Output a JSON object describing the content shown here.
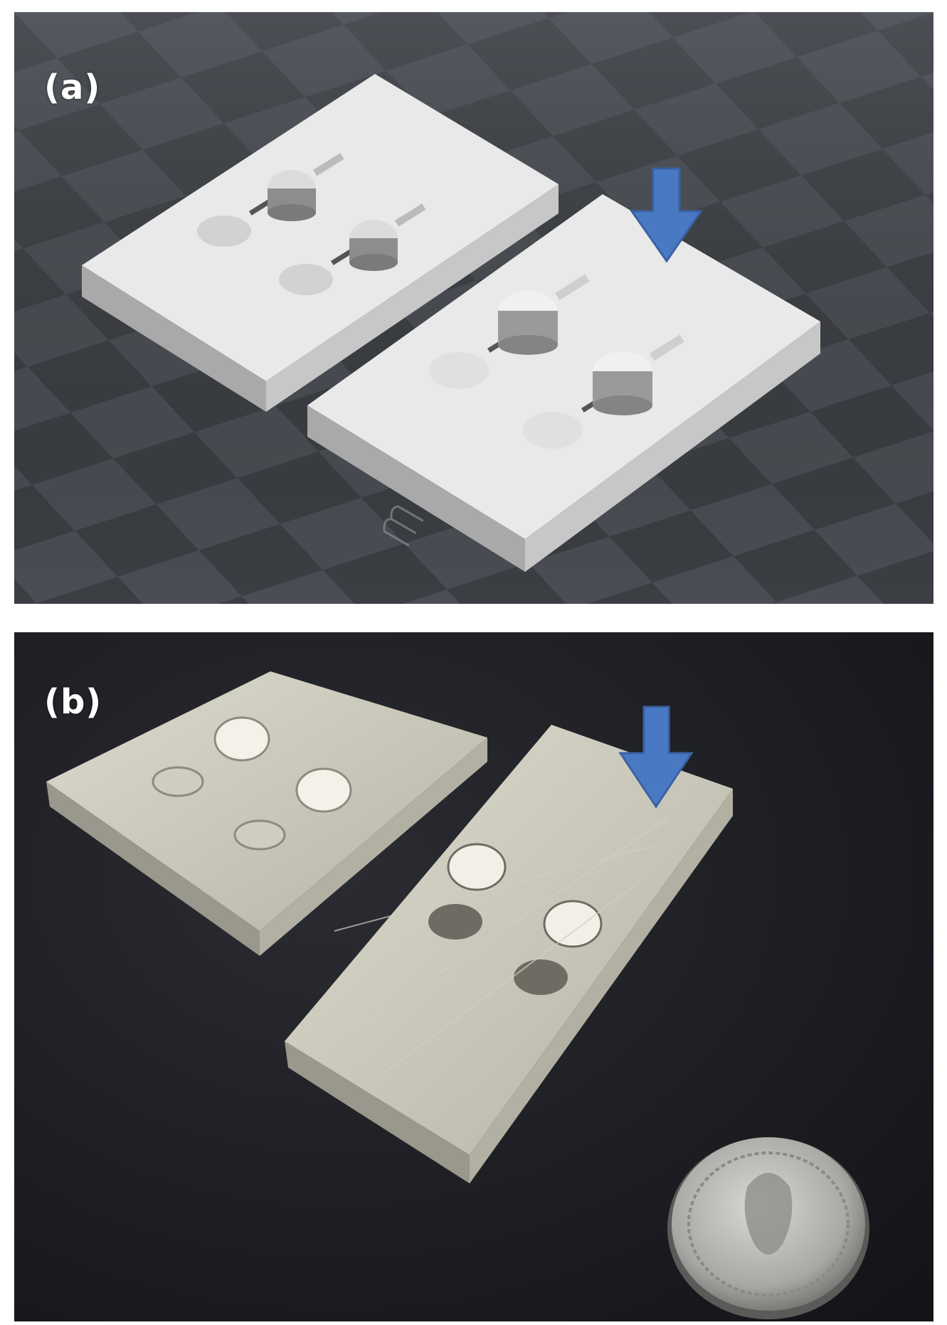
{
  "panels": [
    {
      "id": "a",
      "label": "(a)"
    },
    {
      "id": "b",
      "label": "(b)"
    }
  ],
  "colors": {
    "arrow": "#4a79c4",
    "checker_dark": "#3b3e43",
    "checker_light": "#4a4e54",
    "plate_top": "#e9e9e9",
    "background_b": "#1b1d22"
  }
}
